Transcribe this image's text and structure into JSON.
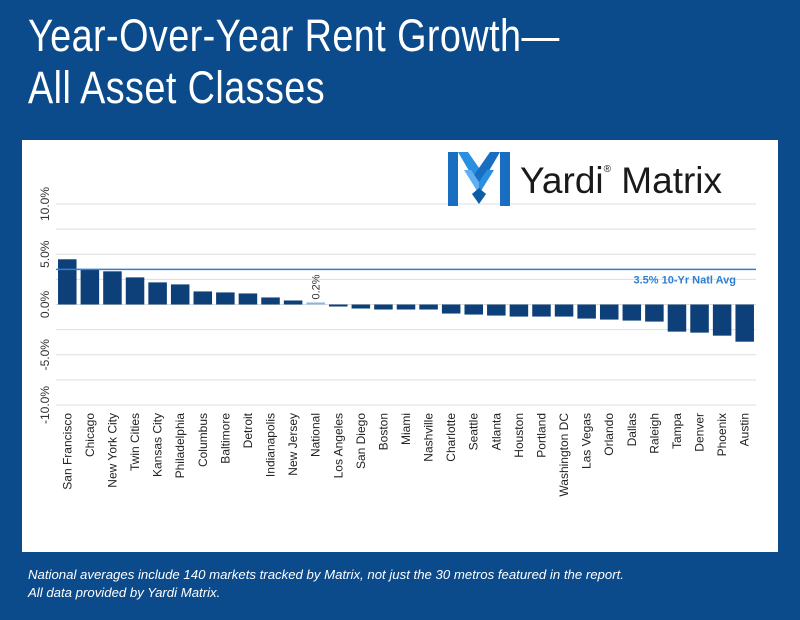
{
  "title_lines": [
    "Year-Over-Year Rent Growth—",
    "All Asset Classes"
  ],
  "logo": {
    "brand": "Yardi",
    "product": "Matrix",
    "reg_mark": "®"
  },
  "footnote_lines": [
    "National averages include 140 markets tracked by Matrix, not just the 30 metros featured in the report.",
    "All data provided by Yardi Matrix."
  ],
  "colors": {
    "background": "#0b4a8b",
    "bar": "#0d3f78",
    "national_bar": "#8cb4e0",
    "avg_line": "#2f7fd1",
    "grid": "#dddddd"
  },
  "chart_data": {
    "type": "bar",
    "categories": [
      "San Francisco",
      "Chicago",
      "New York City",
      "Twin Cities",
      "Kansas City",
      "Philadelphia",
      "Columbus",
      "Baltimore",
      "Detroit",
      "Indianapolis",
      "New Jersey",
      "National",
      "Los Angeles",
      "San Diego",
      "Boston",
      "Miami",
      "Nashville",
      "Charlotte",
      "Seattle",
      "Atlanta",
      "Houston",
      "Portland",
      "Washington DC",
      "Las Vegas",
      "Orlando",
      "Dallas",
      "Raleigh",
      "Tampa",
      "Denver",
      "Phoenix",
      "Austin"
    ],
    "values": [
      4.5,
      3.5,
      3.3,
      2.7,
      2.2,
      2.0,
      1.3,
      1.2,
      1.1,
      0.7,
      0.4,
      0.2,
      -0.2,
      -0.4,
      -0.5,
      -0.5,
      -0.5,
      -0.9,
      -1.0,
      -1.1,
      -1.2,
      -1.2,
      -1.2,
      -1.4,
      -1.5,
      -1.6,
      -1.7,
      -2.7,
      -2.8,
      -3.1,
      -3.7
    ],
    "highlight": {
      "category": "National",
      "label": "0.2%"
    },
    "reference_line": {
      "value": 3.5,
      "label": "3.5% 10-Yr Natl Avg"
    },
    "ytick_labels": [
      "10.0%",
      "5.0%",
      "0.0%",
      "-5.0%",
      "-10.0%"
    ],
    "ytick_values": [
      10,
      5,
      0,
      -5,
      -10
    ],
    "ylim": [
      -10,
      10
    ],
    "grid": true
  }
}
